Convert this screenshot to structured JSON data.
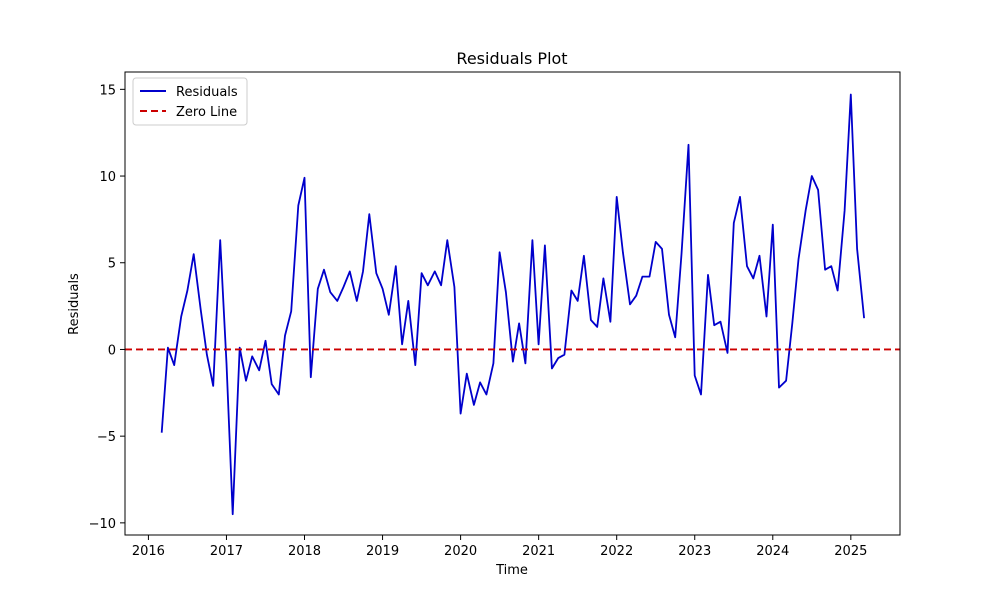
{
  "chart_data": {
    "type": "line",
    "title": "Residuals Plot",
    "xlabel": "Time",
    "ylabel": "Residuals",
    "xlim": [
      2015.7,
      2025.63
    ],
    "ylim": [
      -10.7,
      16.0
    ],
    "x_ticks": [
      2016,
      2017,
      2018,
      2019,
      2020,
      2021,
      2022,
      2023,
      2024,
      2025
    ],
    "x_tick_labels": [
      "2016",
      "2017",
      "2018",
      "2019",
      "2020",
      "2021",
      "2022",
      "2023",
      "2024",
      "2025"
    ],
    "y_ticks": [
      -10,
      -5,
      0,
      5,
      10,
      15
    ],
    "y_tick_labels": [
      "−10",
      "−5",
      "0",
      "5",
      "10",
      "15"
    ],
    "grid": false,
    "legend_position": "top-left",
    "series": [
      {
        "name": "Residuals",
        "color": "#0000cc",
        "style": "solid",
        "x": [
          2016.17,
          2016.25,
          2016.33,
          2016.42,
          2016.5,
          2016.58,
          2016.67,
          2016.75,
          2016.83,
          2016.92,
          2017.0,
          2017.08,
          2017.17,
          2017.25,
          2017.33,
          2017.42,
          2017.5,
          2017.58,
          2017.67,
          2017.75,
          2017.83,
          2017.92,
          2018.0,
          2018.08,
          2018.17,
          2018.25,
          2018.33,
          2018.42,
          2018.5,
          2018.58,
          2018.67,
          2018.75,
          2018.83,
          2018.92,
          2019.0,
          2019.08,
          2019.17,
          2019.25,
          2019.33,
          2019.42,
          2019.5,
          2019.58,
          2019.67,
          2019.75,
          2019.83,
          2019.92,
          2020.0,
          2020.08,
          2020.17,
          2020.25,
          2020.33,
          2020.42,
          2020.5,
          2020.58,
          2020.67,
          2020.75,
          2020.83,
          2020.92,
          2021.0,
          2021.08,
          2021.17,
          2021.25,
          2021.33,
          2021.42,
          2021.5,
          2021.58,
          2021.67,
          2021.75,
          2021.83,
          2021.92,
          2022.0,
          2022.08,
          2022.17,
          2022.25,
          2022.33,
          2022.42,
          2022.5,
          2022.58,
          2022.67,
          2022.75,
          2022.83,
          2022.92,
          2023.0,
          2023.08,
          2023.17,
          2023.25,
          2023.33,
          2023.42,
          2023.5,
          2023.58,
          2023.67,
          2023.75,
          2023.83,
          2023.92,
          2024.0,
          2024.08,
          2024.17,
          2024.25,
          2024.33,
          2024.42,
          2024.5,
          2024.58,
          2024.67,
          2024.75,
          2024.83,
          2024.92,
          2025.0,
          2025.08,
          2025.17
        ],
        "values": [
          -4.8,
          0.1,
          -0.9,
          1.9,
          3.4,
          5.5,
          2.3,
          -0.3,
          -2.1,
          6.3,
          -0.8,
          -9.5,
          0.1,
          -1.8,
          -0.4,
          -1.2,
          0.5,
          -2.0,
          -2.6,
          0.8,
          2.2,
          8.3,
          9.9,
          -1.6,
          3.5,
          4.6,
          3.3,
          2.8,
          3.6,
          4.5,
          2.8,
          4.5,
          7.8,
          4.4,
          3.5,
          2.0,
          4.8,
          0.3,
          2.8,
          -0.9,
          4.4,
          3.7,
          4.5,
          3.7,
          6.3,
          3.6,
          -3.7,
          -1.4,
          -3.2,
          -1.9,
          -2.6,
          -0.8,
          5.6,
          3.3,
          -0.7,
          1.5,
          -0.8,
          6.3,
          0.3,
          6.0,
          -1.1,
          -0.5,
          -0.3,
          3.4,
          2.8,
          5.4,
          1.7,
          1.3,
          4.1,
          1.6,
          8.8,
          5.6,
          2.6,
          3.1,
          4.2,
          4.2,
          6.2,
          5.8,
          2.0,
          0.7,
          5.5,
          11.8,
          -1.5,
          -2.6,
          4.3,
          1.4,
          1.6,
          -0.2,
          7.3,
          8.8,
          4.8,
          4.1,
          5.4,
          1.9,
          7.2,
          -2.2,
          -1.8,
          1.5,
          5.2,
          8.0,
          10.0,
          9.2,
          4.6,
          4.8,
          3.4,
          8.0,
          14.7,
          5.8,
          1.8
        ]
      },
      {
        "name": "Zero Line",
        "color": "#cc0000",
        "style": "dashed",
        "y_constant": 0
      }
    ]
  }
}
